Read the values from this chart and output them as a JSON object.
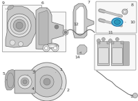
{
  "bg_color": "#ffffff",
  "line_color": "#666666",
  "label_color": "#333333",
  "box_bg": "#f8f8f8",
  "highlight_color": "#4ab8d8",
  "gray_part": "#c8c8c8",
  "gray_dark": "#a0a0a0",
  "gray_light": "#e0e0e0",
  "gray_mid": "#b4b4b4"
}
